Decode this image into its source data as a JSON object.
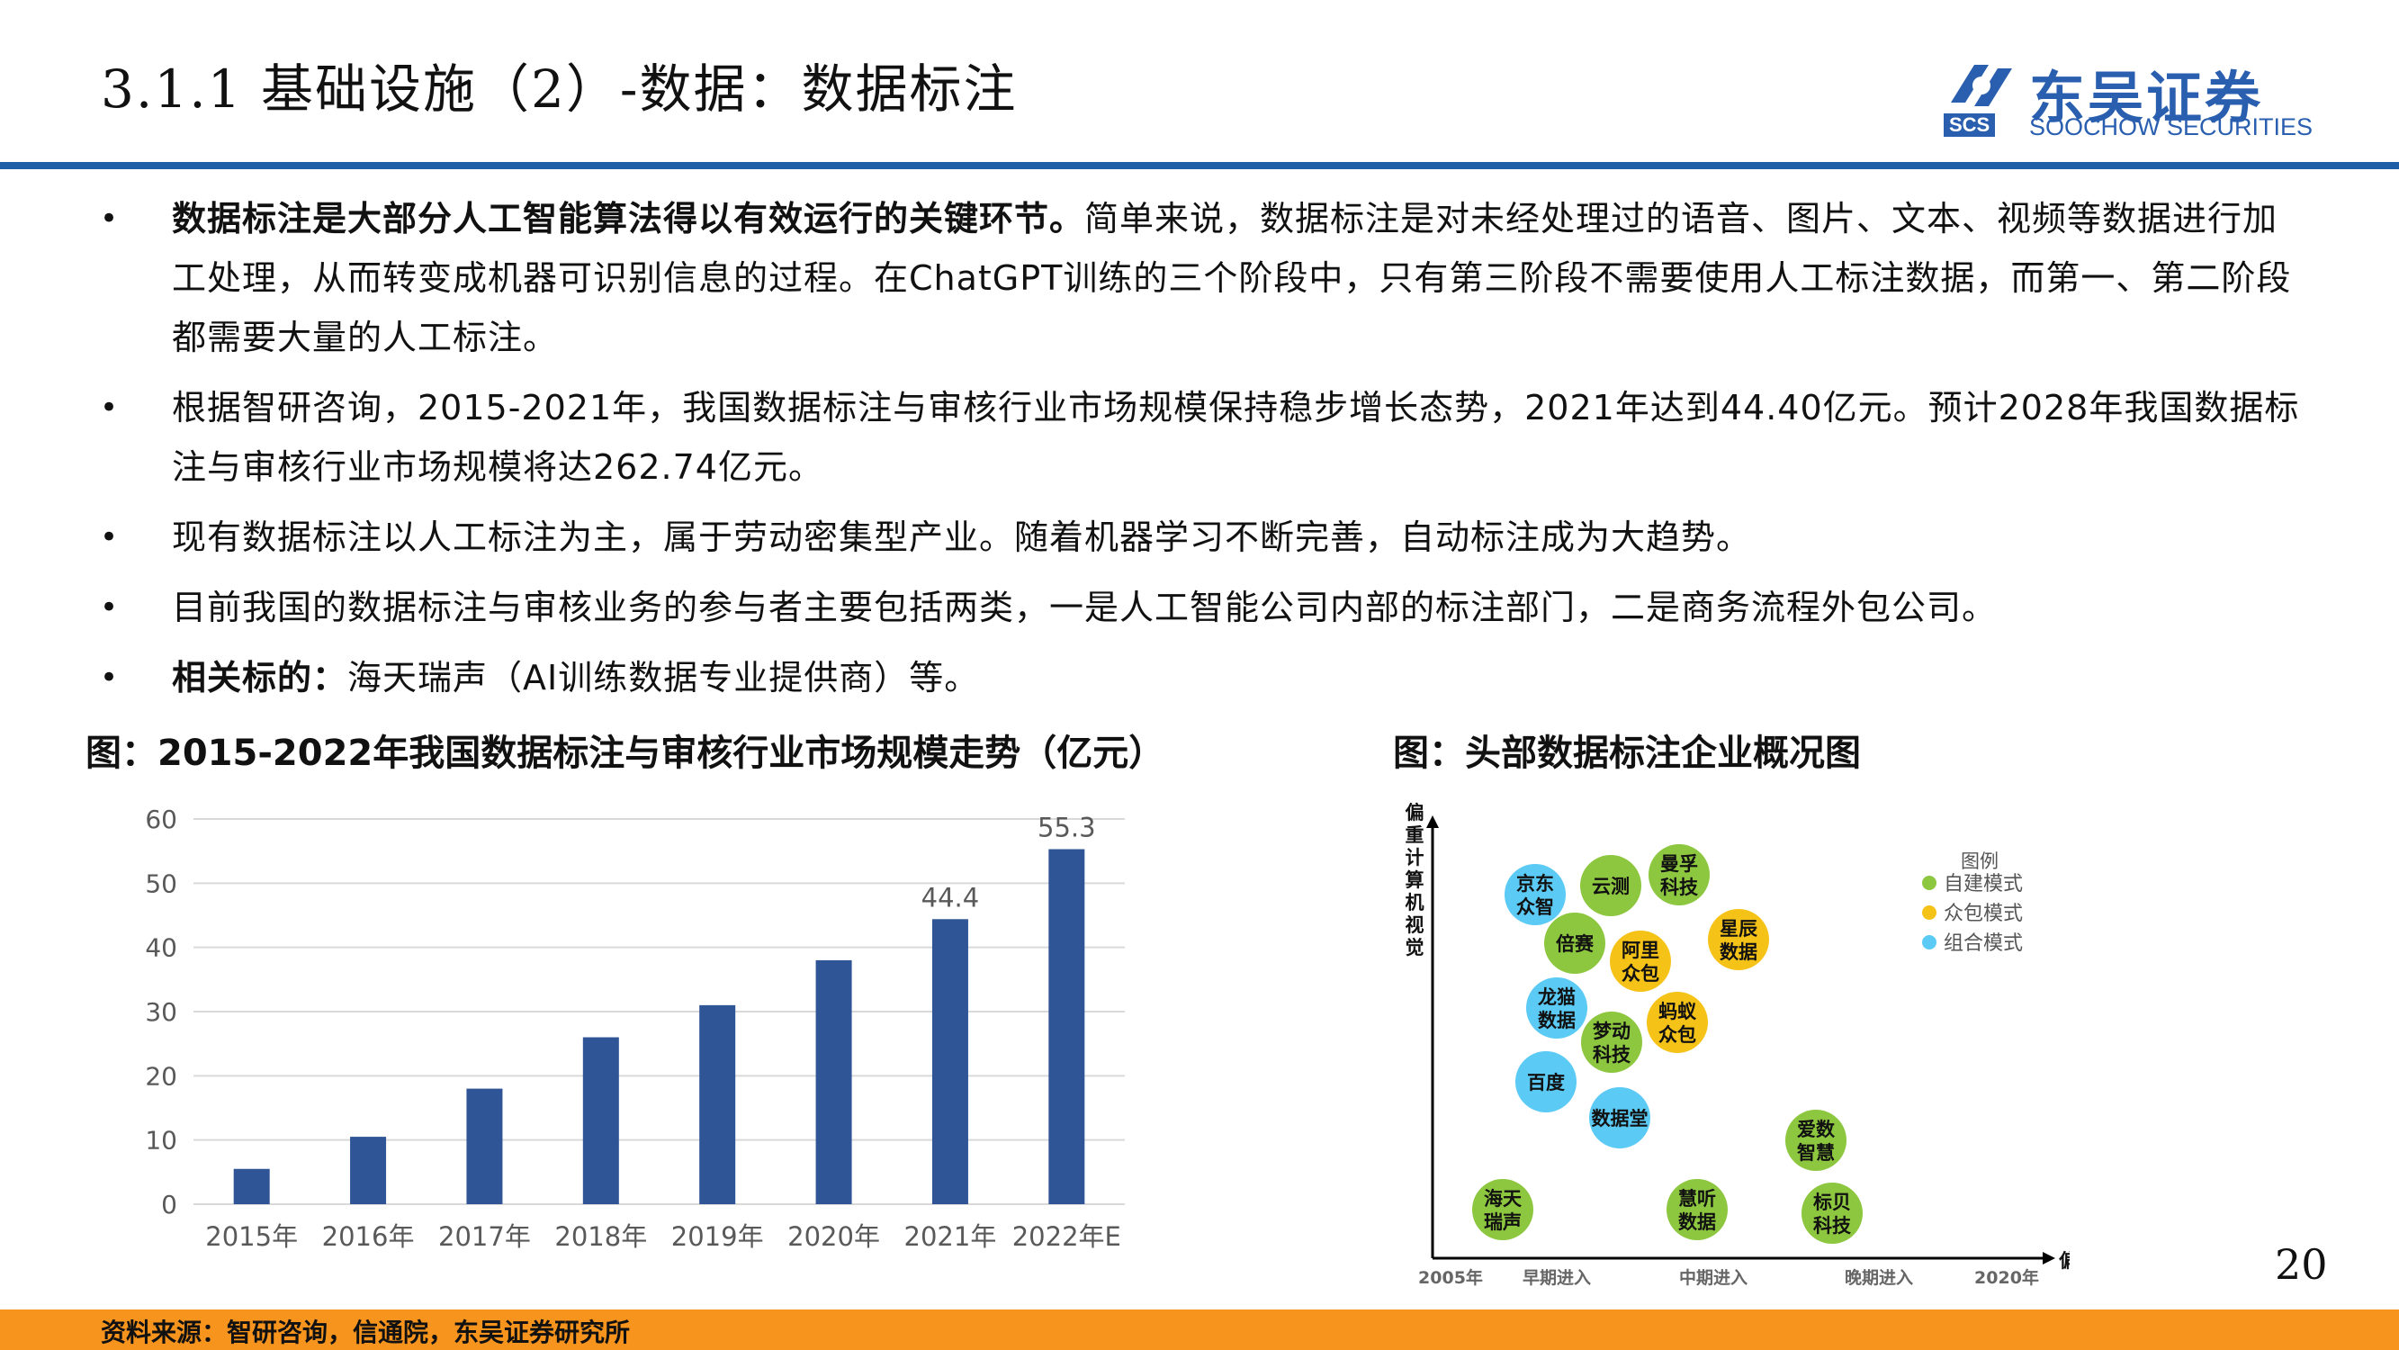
{
  "header": {
    "title": "3.1.1 基础设施（2）-数据：数据标注",
    "logo_cn": "东吴证券",
    "logo_en": "SOOCHOW SECURITIES",
    "logo_scs": "SCS",
    "brand_color": "#1f5fa8"
  },
  "bullets": [
    {
      "bold": "数据标注是大部分人工智能算法得以有效运行的关键环节。",
      "text": "简单来说，数据标注是对未经处理过的语音、图片、文本、视频等数据进行加工处理，从而转变成机器可识别信息的过程。在ChatGPT训练的三个阶段中，只有第三阶段不需要使用人工标注数据，而第一、第二阶段都需要大量的人工标注。"
    },
    {
      "bold": "",
      "text": "根据智研咨询，2015-2021年，我国数据标注与审核行业市场规模保持稳步增长态势，2021年达到44.40亿元。预计2028年我国数据标注与审核行业市场规模将达262.74亿元。"
    },
    {
      "bold": "",
      "text": "现有数据标注以人工标注为主，属于劳动密集型产业。随着机器学习不断完善，自动标注成为大趋势。"
    },
    {
      "bold": "",
      "text": "目前我国的数据标注与审核业务的参与者主要包括两类，一是人工智能公司内部的标注部门，二是商务流程外包公司。"
    },
    {
      "bold": "相关标的：",
      "text": "海天瑞声（AI训练数据专业提供商）等。"
    }
  ],
  "bullet_symbol": "•",
  "left_caption": "图：2015-2022年我国数据标注与审核行业市场规模走势（亿元）",
  "right_caption": "图：头部数据标注企业概况图",
  "chart_data": [
    {
      "type": "bar",
      "categories": [
        "2015年",
        "2016年",
        "2017年",
        "2018年",
        "2019年",
        "2020年",
        "2021年",
        "2022年E"
      ],
      "values": [
        5.5,
        10.5,
        18,
        26,
        31,
        38,
        44.4,
        55.3
      ],
      "data_labels": [
        "",
        "",
        "",
        "",
        "",
        "",
        "44.4",
        "55.3"
      ],
      "ylim": [
        0,
        60
      ],
      "yticks": [
        "0",
        "10",
        "20",
        "30",
        "40",
        "50",
        "60"
      ],
      "grid": true,
      "bar_color": "#2f5597"
    },
    {
      "type": "scatter",
      "ylabel": "偏重计算机视觉",
      "xlabel": "偏重语音",
      "x_ticks": [
        "2005年",
        "早期进入",
        "中期进入",
        "晚期进入",
        "2020年"
      ],
      "legend_title": "图例",
      "legend": [
        {
          "name": "自建模式",
          "color": "#8dc63f"
        },
        {
          "name": "众包模式",
          "color": "#f5c218"
        },
        {
          "name": "组合模式",
          "color": "#5bcbf5"
        }
      ],
      "bubbles": [
        {
          "name": "京东众智",
          "lines": [
            "京东",
            "众智"
          ],
          "mode": "组合模式",
          "color": "#5bcbf5"
        },
        {
          "name": "云测",
          "lines": [
            "云测"
          ],
          "mode": "自建模式",
          "color": "#8dc63f"
        },
        {
          "name": "曼孚科技",
          "lines": [
            "曼孚",
            "科技"
          ],
          "mode": "自建模式",
          "color": "#8dc63f"
        },
        {
          "name": "星辰数据",
          "lines": [
            "星辰",
            "数据"
          ],
          "mode": "众包模式",
          "color": "#f5c218"
        },
        {
          "name": "倍赛",
          "lines": [
            "倍赛"
          ],
          "mode": "自建模式",
          "color": "#8dc63f"
        },
        {
          "name": "阿里众包",
          "lines": [
            "阿里",
            "众包"
          ],
          "mode": "众包模式",
          "color": "#f5c218"
        },
        {
          "name": "龙猫数据",
          "lines": [
            "龙猫",
            "数据"
          ],
          "mode": "组合模式",
          "color": "#5bcbf5"
        },
        {
          "name": "蚂蚁众包",
          "lines": [
            "蚂蚁",
            "众包"
          ],
          "mode": "众包模式",
          "color": "#f5c218"
        },
        {
          "name": "梦动科技",
          "lines": [
            "梦动",
            "科技"
          ],
          "mode": "自建模式",
          "color": "#8dc63f"
        },
        {
          "name": "百度",
          "lines": [
            "百度"
          ],
          "mode": "组合模式",
          "color": "#5bcbf5"
        },
        {
          "name": "数据堂",
          "lines": [
            "数据堂"
          ],
          "mode": "组合模式",
          "color": "#5bcbf5"
        },
        {
          "name": "爱数智慧",
          "lines": [
            "爱数",
            "智慧"
          ],
          "mode": "自建模式",
          "color": "#8dc63f"
        },
        {
          "name": "海天瑞声",
          "lines": [
            "海天",
            "瑞声"
          ],
          "mode": "自建模式",
          "color": "#8dc63f"
        },
        {
          "name": "慧听数据",
          "lines": [
            "慧听",
            "数据"
          ],
          "mode": "自建模式",
          "color": "#8dc63f"
        },
        {
          "name": "标贝科技",
          "lines": [
            "标贝",
            "科技"
          ],
          "mode": "自建模式",
          "color": "#8dc63f"
        }
      ]
    }
  ],
  "footer": {
    "source": "资料来源：智研咨询，信通院，东吴证券研究所",
    "page_number": "20",
    "bar_color": "#f7941d"
  }
}
